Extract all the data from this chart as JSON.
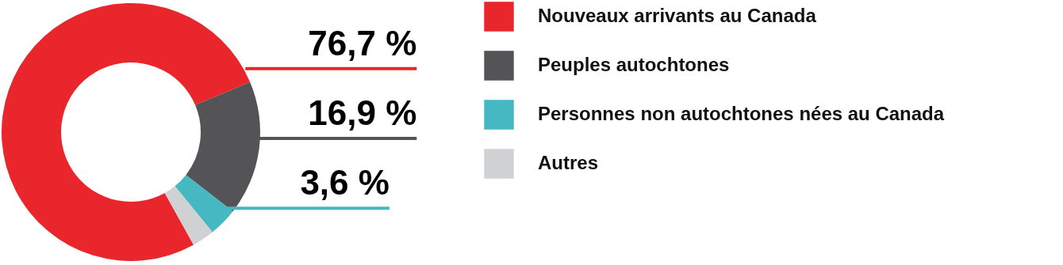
{
  "chart_data": {
    "type": "donut",
    "categories": [
      "Nouveaux arrivants au Canada",
      "Peuples autochtones",
      "Personnes non autochtones nées au Canada",
      "Autres"
    ],
    "values": [
      76.7,
      16.9,
      3.6,
      2.8
    ],
    "value_labels": [
      "76,7 %",
      "16,9 %",
      "3,6 %",
      null
    ],
    "colors": [
      "#e8262b",
      "#545456",
      "#45b8c1",
      "#d0d1d3"
    ],
    "legend": "right"
  }
}
